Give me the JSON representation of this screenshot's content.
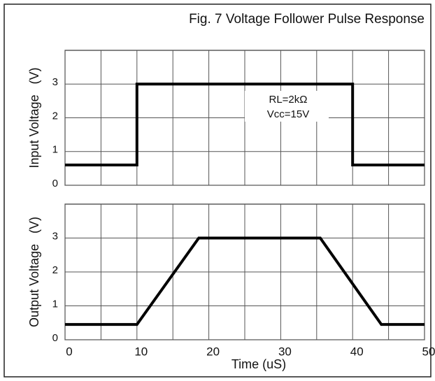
{
  "title": "Fig. 7 Voltage Follower Pulse Response",
  "chart_data": [
    {
      "type": "line",
      "ylabel": "Input Voltage   (V)",
      "annotations": [
        "RL=2kΩ",
        "Vcc=15V"
      ],
      "x": [
        0,
        10,
        10,
        40,
        40,
        50
      ],
      "series": [
        {
          "color": "#000000",
          "values": [
            0.6,
            0.6,
            3,
            3,
            0.6,
            0.6
          ]
        }
      ],
      "xlim": [
        0,
        50
      ],
      "xticks": [
        0,
        10,
        20,
        30,
        40,
        50
      ],
      "x_minor_ticks": [
        5,
        15,
        25,
        35,
        45
      ],
      "show_xtick_labels": false,
      "ylim": [
        0,
        4
      ],
      "yticks": [
        0,
        1,
        2,
        3
      ],
      "grid": true
    },
    {
      "type": "line",
      "ylabel": "Output Voltage   (V)",
      "xlabel": "Time (uS)",
      "x": [
        0,
        10,
        18.6,
        35.5,
        44,
        50
      ],
      "series": [
        {
          "color": "#000000",
          "values": [
            0.45,
            0.45,
            3,
            3,
            0.45,
            0.45
          ]
        }
      ],
      "xlim": [
        0,
        50
      ],
      "xticks": [
        0,
        10,
        20,
        30,
        40,
        50
      ],
      "x_minor_ticks": [
        5,
        15,
        25,
        35,
        45
      ],
      "show_xtick_labels": true,
      "ylim": [
        0,
        4
      ],
      "yticks": [
        0,
        1,
        2,
        3
      ],
      "grid": true
    }
  ]
}
